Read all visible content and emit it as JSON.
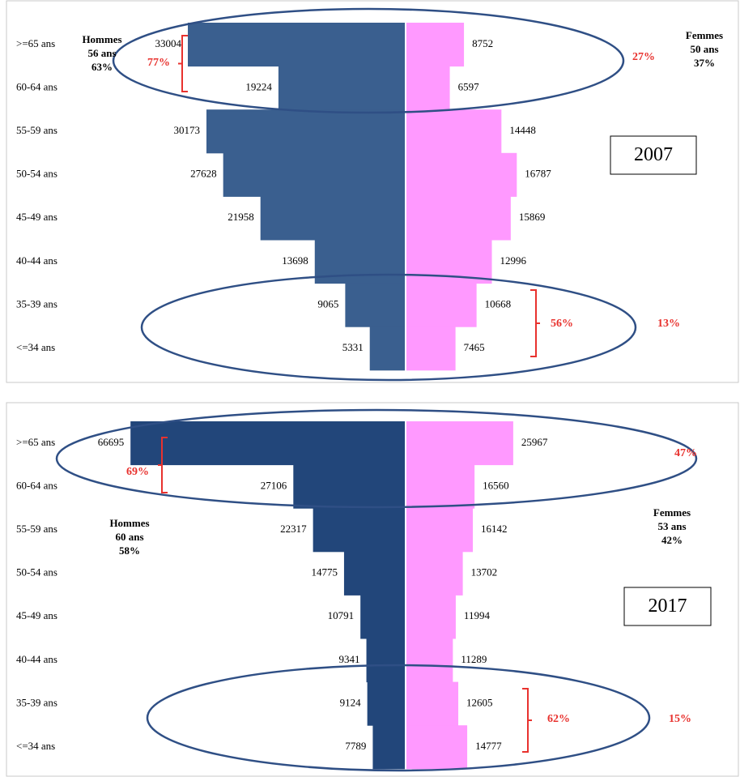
{
  "chart_data": [
    {
      "type": "pyramid",
      "year_label": "2007",
      "categories": [
        ">=65 ans",
        "60-64 ans",
        "55-59 ans",
        "50-54 ans",
        "45-49 ans",
        "40-44 ans",
        "35-39 ans",
        "<=34 ans"
      ],
      "series": [
        {
          "name": "Hommes",
          "age": "56 ans",
          "share": "63%",
          "color": "#3a5f8f",
          "values": [
            33004,
            19224,
            30173,
            27628,
            21958,
            13698,
            9065,
            5331
          ]
        },
        {
          "name": "Femmes",
          "age": "50 ans",
          "share": "37%",
          "color": "#ff99ff",
          "values": [
            8752,
            6597,
            14448,
            16787,
            15869,
            12996,
            10668,
            7465
          ]
        }
      ],
      "annotations": [
        "77%",
        "27%",
        "56%",
        "13%"
      ]
    },
    {
      "type": "pyramid",
      "year_label": "2017",
      "categories": [
        ">=65 ans",
        "60-64 ans",
        "55-59 ans",
        "50-54 ans",
        "45-49 ans",
        "40-44 ans",
        "35-39 ans",
        "<=34 ans"
      ],
      "series": [
        {
          "name": "Hommes",
          "age": "60 ans",
          "share": "58%",
          "color": "#22467a",
          "values": [
            66695,
            27106,
            22317,
            14775,
            10791,
            9341,
            9124,
            7789
          ]
        },
        {
          "name": "Femmes",
          "age": "53 ans",
          "share": "42%",
          "color": "#ff99ff",
          "values": [
            25967,
            16560,
            16142,
            13702,
            11994,
            11289,
            12605,
            14777
          ]
        }
      ],
      "annotations": [
        "69%",
        "47%",
        "62%",
        "15%"
      ]
    }
  ]
}
